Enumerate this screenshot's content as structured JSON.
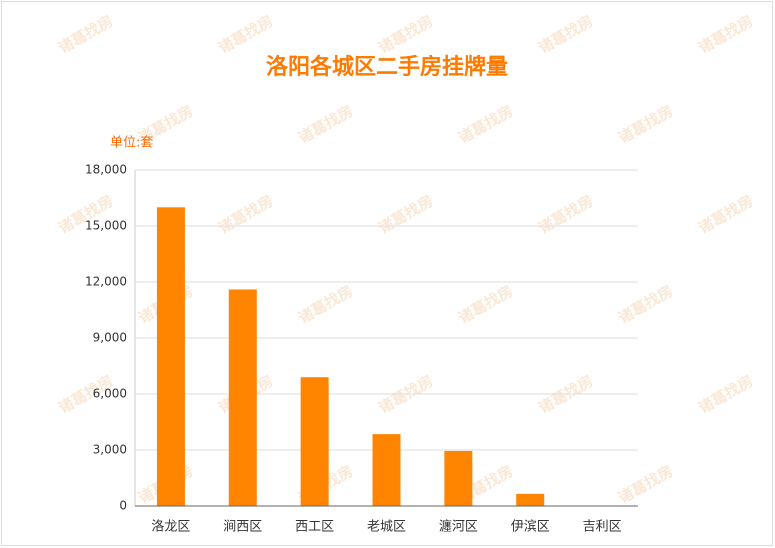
{
  "chart_data": {
    "type": "bar",
    "title": "洛阳各城区二手房挂牌量",
    "unit_label": "单位:套",
    "watermark": "诸葛找房",
    "categories": [
      "洛龙区",
      "涧西区",
      "西工区",
      "老城区",
      "瀍河区",
      "伊滨区",
      "吉利区"
    ],
    "values": [
      16000,
      11600,
      6900,
      3850,
      2950,
      650,
      0
    ],
    "color": "#ff8400",
    "ylim": [
      0,
      18000
    ],
    "yticks": [
      0,
      {
        "value": 3000,
        "label": "3,000"
      },
      {
        "value": 6000,
        "label": "6,000"
      },
      {
        "value": 9000,
        "label": "9,000"
      },
      {
        "value": 12000,
        "label": "12,000"
      },
      {
        "value": 15000,
        "label": "15,000"
      },
      {
        "value": 18000,
        "label": "18,000"
      }
    ],
    "grid": true
  }
}
